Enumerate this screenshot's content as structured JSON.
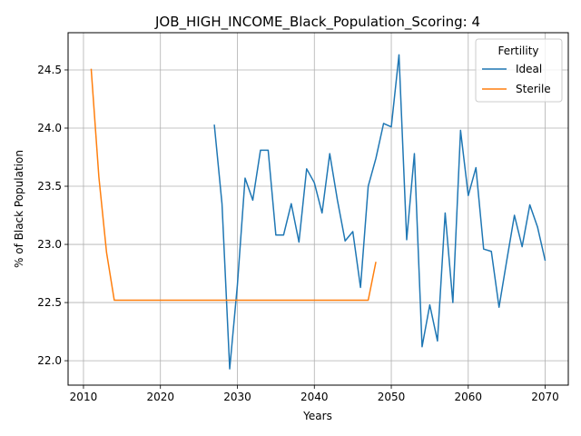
{
  "chart_data": {
    "type": "line",
    "title": "JOB_HIGH_INCOME_Black_Population_Scoring: 4",
    "xlabel": "Years",
    "ylabel": "% of Black Population",
    "xlim": [
      2008,
      2073
    ],
    "ylim": [
      21.79,
      24.82
    ],
    "xticks": [
      2010,
      2020,
      2030,
      2040,
      2050,
      2060,
      2070
    ],
    "yticks": [
      22.0,
      22.5,
      23.0,
      23.5,
      24.0,
      24.5
    ],
    "xtick_labels": [
      "2010",
      "2020",
      "2030",
      "2040",
      "2050",
      "2060",
      "2070"
    ],
    "ytick_labels": [
      "22.0",
      "22.5",
      "23.0",
      "23.5",
      "24.0",
      "24.5"
    ],
    "grid": true,
    "legend": {
      "title": "Fertility",
      "placement": "top-right"
    },
    "series": [
      {
        "name": "Ideal",
        "color": "#1f77b4",
        "x": [
          2027,
          2028,
          2029,
          2030,
          2031,
          2032,
          2033,
          2034,
          2035,
          2036,
          2037,
          2038,
          2039,
          2040,
          2041,
          2042,
          2043,
          2044,
          2045,
          2046,
          2047,
          2048,
          2049,
          2050,
          2051,
          2052,
          2053,
          2054,
          2055,
          2056,
          2057,
          2058,
          2059,
          2060,
          2061,
          2062,
          2063,
          2064,
          2065,
          2066,
          2067,
          2068,
          2069,
          2070
        ],
        "y": [
          24.03,
          23.35,
          21.93,
          22.65,
          23.57,
          23.38,
          23.81,
          23.81,
          23.08,
          23.08,
          23.35,
          23.02,
          23.65,
          23.53,
          23.27,
          23.78,
          23.38,
          23.03,
          23.11,
          22.63,
          23.5,
          23.74,
          24.04,
          24.01,
          24.63,
          23.04,
          23.78,
          22.12,
          22.48,
          22.17,
          23.27,
          22.5,
          23.98,
          23.42,
          23.66,
          22.96,
          22.94,
          22.46,
          22.86,
          23.25,
          22.98,
          23.34,
          23.15,
          22.86
        ]
      },
      {
        "name": "Sterile",
        "color": "#ff7f0e",
        "x": [
          2011,
          2012,
          2013,
          2014,
          2015,
          2016,
          2017,
          2018,
          2019,
          2020,
          2021,
          2022,
          2023,
          2024,
          2025,
          2026,
          2027,
          2028,
          2029,
          2030,
          2031,
          2032,
          2033,
          2034,
          2035,
          2036,
          2037,
          2038,
          2039,
          2040,
          2041,
          2042,
          2043,
          2044,
          2045,
          2046,
          2047,
          2048
        ],
        "y": [
          24.51,
          23.58,
          22.93,
          22.52,
          22.52,
          22.52,
          22.52,
          22.52,
          22.52,
          22.52,
          22.52,
          22.52,
          22.52,
          22.52,
          22.52,
          22.52,
          22.52,
          22.52,
          22.52,
          22.52,
          22.52,
          22.52,
          22.52,
          22.52,
          22.52,
          22.52,
          22.52,
          22.52,
          22.52,
          22.52,
          22.52,
          22.52,
          22.52,
          22.52,
          22.52,
          22.52,
          22.52,
          22.85
        ]
      }
    ]
  }
}
